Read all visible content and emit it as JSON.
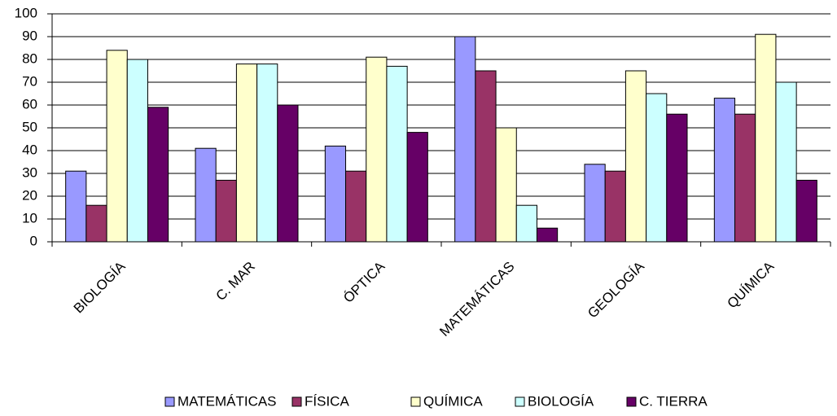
{
  "chart_data": {
    "type": "bar",
    "categories": [
      "BIOLOGÍA",
      "C. MAR",
      "ÓPTICA",
      "MATEMÁTICAS",
      "GEOLOGÍA",
      "QUÍMICA"
    ],
    "series": [
      {
        "name": "MATEMÁTICAS",
        "color": "#9999ff",
        "values": [
          31,
          41,
          42,
          90,
          34,
          63
        ]
      },
      {
        "name": "FÍSICA",
        "color": "#993366",
        "values": [
          16,
          27,
          31,
          75,
          31,
          56
        ]
      },
      {
        "name": "QUÍMICA",
        "color": "#ffffcc",
        "values": [
          84,
          78,
          81,
          50,
          75,
          91
        ]
      },
      {
        "name": "BIOLOGÍA",
        "color": "#ccffff",
        "values": [
          80,
          78,
          77,
          16,
          65,
          70
        ]
      },
      {
        "name": "C. TIERRA",
        "color": "#660066",
        "values": [
          59,
          60,
          48,
          6,
          56,
          27
        ]
      }
    ],
    "ylim": [
      0,
      100
    ],
    "yticks": [
      0,
      10,
      20,
      30,
      40,
      50,
      60,
      70,
      80,
      90,
      100
    ],
    "grid": true,
    "legend": "bottom"
  }
}
